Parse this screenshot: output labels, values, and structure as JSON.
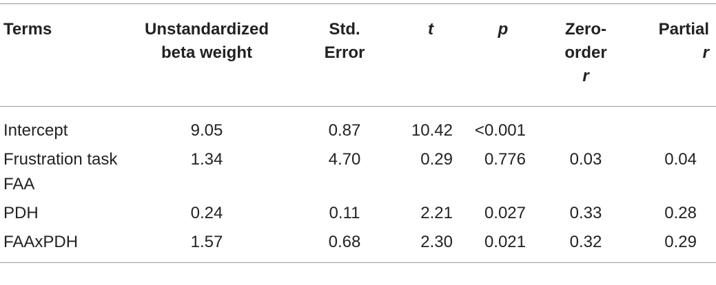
{
  "table": {
    "header": [
      [
        "Terms"
      ],
      [
        "Unstandardized",
        "beta weight"
      ],
      [
        "Std.",
        "Error"
      ],
      [
        "t"
      ],
      [
        "p"
      ],
      [
        "Zero-",
        "order",
        "r"
      ],
      [
        "Partial",
        "r"
      ]
    ],
    "rows": [
      [
        "Intercept",
        "9.05",
        "0.87",
        "10.42",
        "<0.001",
        "",
        ""
      ],
      [
        "Frustration task FAA",
        "1.34",
        "4.70",
        "0.29",
        "0.776",
        "0.03",
        "0.04"
      ],
      [
        "PDH",
        "0.24",
        "0.11",
        "2.21",
        "0.027",
        "0.33",
        "0.28"
      ],
      [
        "FAAxPDH",
        "1.57",
        "0.68",
        "2.30",
        "0.021",
        "0.32",
        "0.29"
      ]
    ]
  }
}
